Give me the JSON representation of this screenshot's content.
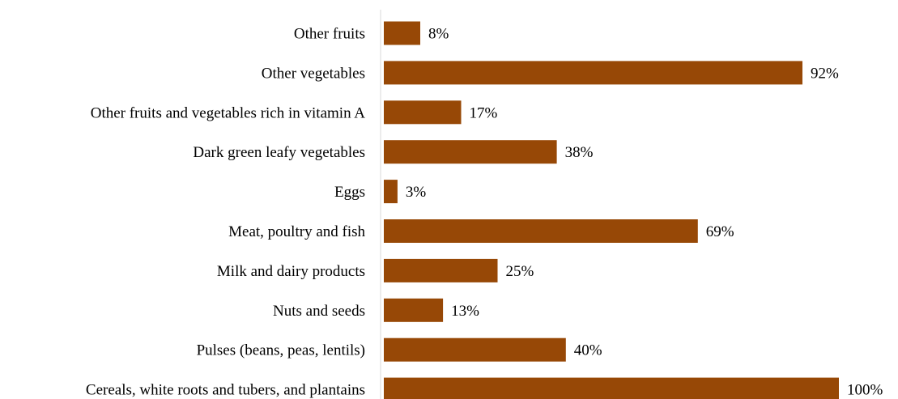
{
  "chart_data": {
    "type": "bar",
    "orientation": "horizontal",
    "categories": [
      "Other fruits",
      "Other vegetables",
      "Other fruits and vegetables rich in vitamin A",
      "Dark green leafy vegetables",
      "Eggs",
      "Meat, poultry and fish",
      "Milk and dairy products",
      "Nuts and seeds",
      "Pulses (beans, peas, lentils)",
      "Cereals, white roots and tubers, and plantains"
    ],
    "values": [
      8,
      92,
      17,
      38,
      3,
      69,
      25,
      13,
      40,
      100
    ],
    "value_labels": [
      "8%",
      "92%",
      "17%",
      "38%",
      "3%",
      "69%",
      "25%",
      "13%",
      "40%",
      "100%"
    ],
    "xlim": [
      0,
      100
    ],
    "unit": "%",
    "bar_color": "#974806",
    "axis_color": "#d9d9d9",
    "grid": false,
    "legend": "none"
  }
}
